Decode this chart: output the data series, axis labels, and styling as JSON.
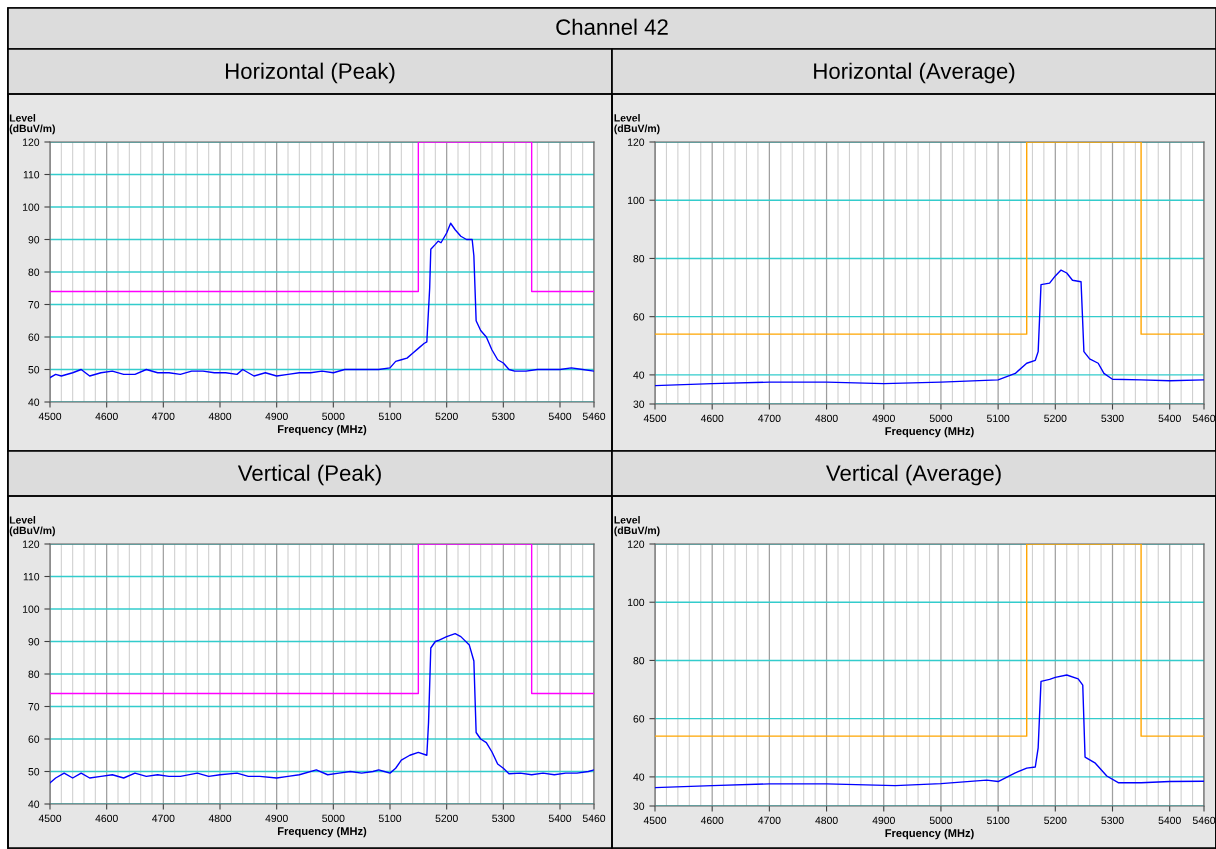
{
  "chart_data": [
    {
      "type": "line",
      "title": "Horizontal (Peak)",
      "annotations": [
        "Channel 42"
      ],
      "xlabel": "Frequency (MHz)",
      "ylabel": "Level\n(dBuV/m)",
      "xlim": [
        4500,
        5460
      ],
      "ylim": [
        40,
        120
      ],
      "xticks": [
        4500,
        4600,
        4700,
        4800,
        4900,
        5000,
        5100,
        5200,
        5300,
        5400,
        5460
      ],
      "yticks": [
        40,
        50,
        60,
        70,
        80,
        90,
        100,
        110,
        120
      ],
      "grid": true,
      "legend": false,
      "series": [
        {
          "color": "#0000ff",
          "x": [
            4500,
            4510,
            4520,
            4540,
            4555,
            4570,
            4590,
            4610,
            4630,
            4650,
            4670,
            4690,
            4710,
            4730,
            4750,
            4770,
            4790,
            4810,
            4830,
            4840,
            4860,
            4880,
            4900,
            4920,
            4940,
            4960,
            4980,
            5000,
            5020,
            5040,
            5060,
            5080,
            5100,
            5110,
            5120,
            5130,
            5140,
            5150,
            5160,
            5165,
            5170,
            5172,
            5180,
            5185,
            5190,
            5200,
            5207,
            5215,
            5225,
            5235,
            5245,
            5248,
            5252,
            5260,
            5270,
            5280,
            5290,
            5300,
            5310,
            5320,
            5340,
            5360,
            5380,
            5400,
            5420,
            5440,
            5460
          ],
          "values": [
            47.5,
            48.5,
            48,
            49,
            50,
            48,
            49,
            49.5,
            48.5,
            48.5,
            50,
            49,
            49,
            48.5,
            49.5,
            49.5,
            49,
            49,
            48.5,
            50,
            48,
            49,
            48,
            48.5,
            49,
            49,
            49.5,
            49,
            50,
            50,
            50,
            50,
            50.5,
            52.5,
            53,
            53.5,
            55,
            56.5,
            58,
            58.5,
            75,
            87,
            88.5,
            89.5,
            89,
            92,
            95,
            93,
            91,
            90,
            90,
            85,
            65,
            62,
            60,
            56,
            53,
            52,
            50,
            49.5,
            49.5,
            50,
            50,
            50,
            50.5,
            50,
            49.5
          ]
        },
        {
          "color": "#ff00ff",
          "x": [
            4500,
            5150,
            5150,
            5350,
            5350,
            5460
          ],
          "values": [
            74,
            74,
            120,
            120,
            74,
            74
          ]
        }
      ]
    },
    {
      "type": "line",
      "title": "Horizontal (Average)",
      "xlabel": "Frequency (MHz)",
      "ylabel": "Level\n(dBuV/m)",
      "xlim": [
        4500,
        5460
      ],
      "ylim": [
        30,
        120
      ],
      "xticks": [
        4500,
        4600,
        4700,
        4800,
        4900,
        5000,
        5100,
        5200,
        5300,
        5400,
        5460
      ],
      "yticks": [
        30,
        40,
        60,
        80,
        100,
        120
      ],
      "grid": true,
      "legend": false,
      "series": [
        {
          "color": "#0000ff",
          "x": [
            4500,
            4600,
            4700,
            4800,
            4900,
            5000,
            5100,
            5130,
            5150,
            5165,
            5170,
            5175,
            5190,
            5200,
            5210,
            5220,
            5230,
            5245,
            5250,
            5260,
            5275,
            5285,
            5300,
            5350,
            5400,
            5460
          ],
          "values": [
            36.3,
            37,
            37.5,
            37.5,
            37,
            37.5,
            38.3,
            40.5,
            44,
            45,
            48,
            71,
            71.5,
            74,
            76,
            75,
            72.5,
            72,
            48,
            45.5,
            44,
            40.5,
            38.5,
            38.3,
            38,
            38.3
          ]
        },
        {
          "color": "#ffa500",
          "x": [
            4500,
            5150,
            5150,
            5350,
            5350,
            5460
          ],
          "values": [
            54,
            54,
            120,
            120,
            54,
            54
          ]
        }
      ]
    },
    {
      "type": "line",
      "title": "Vertical (Peak)",
      "xlabel": "Frequency (MHz)",
      "ylabel": "Level\n(dBuV/m)",
      "xlim": [
        4500,
        5460
      ],
      "ylim": [
        40,
        120
      ],
      "xticks": [
        4500,
        4600,
        4700,
        4800,
        4900,
        5000,
        5100,
        5200,
        5300,
        5400,
        5460
      ],
      "yticks": [
        40,
        50,
        60,
        70,
        80,
        90,
        100,
        110,
        120
      ],
      "grid": true,
      "legend": false,
      "series": [
        {
          "color": "#0000ff",
          "x": [
            4500,
            4510,
            4525,
            4540,
            4555,
            4570,
            4590,
            4610,
            4630,
            4650,
            4670,
            4690,
            4710,
            4730,
            4760,
            4780,
            4800,
            4830,
            4850,
            4870,
            4900,
            4920,
            4940,
            4970,
            4990,
            5010,
            5030,
            5050,
            5070,
            5080,
            5090,
            5100,
            5110,
            5120,
            5135,
            5150,
            5165,
            5168,
            5172,
            5180,
            5185,
            5200,
            5215,
            5225,
            5240,
            5248,
            5252,
            5260,
            5270,
            5280,
            5290,
            5300,
            5310,
            5330,
            5350,
            5370,
            5390,
            5410,
            5430,
            5450,
            5460
          ],
          "values": [
            46.5,
            48,
            49.5,
            48,
            49.5,
            48,
            48.5,
            49,
            48,
            49.5,
            48.5,
            49,
            48.5,
            48.5,
            49.5,
            48.5,
            49,
            49.5,
            48.5,
            48.5,
            48,
            48.5,
            49,
            50.5,
            49,
            49.5,
            50,
            49.5,
            50,
            50.5,
            50,
            49.5,
            51,
            53.5,
            55,
            55.9,
            55,
            65,
            88,
            90,
            90.3,
            91.5,
            92.4,
            91.5,
            88.9,
            84,
            62,
            60,
            58.9,
            56,
            52.3,
            51,
            49.3,
            49.5,
            49,
            49.5,
            49,
            49.5,
            49.5,
            50,
            50.5
          ]
        },
        {
          "color": "#ff00ff",
          "x": [
            4500,
            5150,
            5150,
            5350,
            5350,
            5460
          ],
          "values": [
            74,
            74,
            120,
            120,
            74,
            74
          ]
        }
      ]
    },
    {
      "type": "line",
      "title": "Vertical (Average)",
      "xlabel": "Frequency (MHz)",
      "ylabel": "Level\n(dBuV/m)",
      "xlim": [
        4500,
        5460
      ],
      "ylim": [
        30,
        120
      ],
      "xticks": [
        4500,
        4600,
        4700,
        4800,
        4900,
        5000,
        5100,
        5200,
        5300,
        5400,
        5460
      ],
      "yticks": [
        30,
        40,
        60,
        80,
        100,
        120
      ],
      "grid": true,
      "legend": false,
      "series": [
        {
          "color": "#0000ff",
          "x": [
            4500,
            4600,
            4700,
            4800,
            4920,
            5000,
            5080,
            5100,
            5130,
            5150,
            5165,
            5170,
            5175,
            5190,
            5200,
            5220,
            5240,
            5248,
            5252,
            5270,
            5290,
            5310,
            5350,
            5400,
            5460
          ],
          "values": [
            36.3,
            37,
            37.6,
            37.6,
            37,
            37.7,
            38.9,
            38.4,
            41.4,
            43,
            43.4,
            50,
            72.8,
            73.5,
            74.2,
            75,
            73.7,
            71.5,
            46.8,
            44.7,
            40.3,
            38,
            38,
            38.4,
            38.5
          ]
        },
        {
          "color": "#ffa500",
          "x": [
            4500,
            5150,
            5150,
            5350,
            5350,
            5460
          ],
          "values": [
            54,
            54,
            120,
            120,
            54,
            54
          ]
        }
      ]
    }
  ]
}
